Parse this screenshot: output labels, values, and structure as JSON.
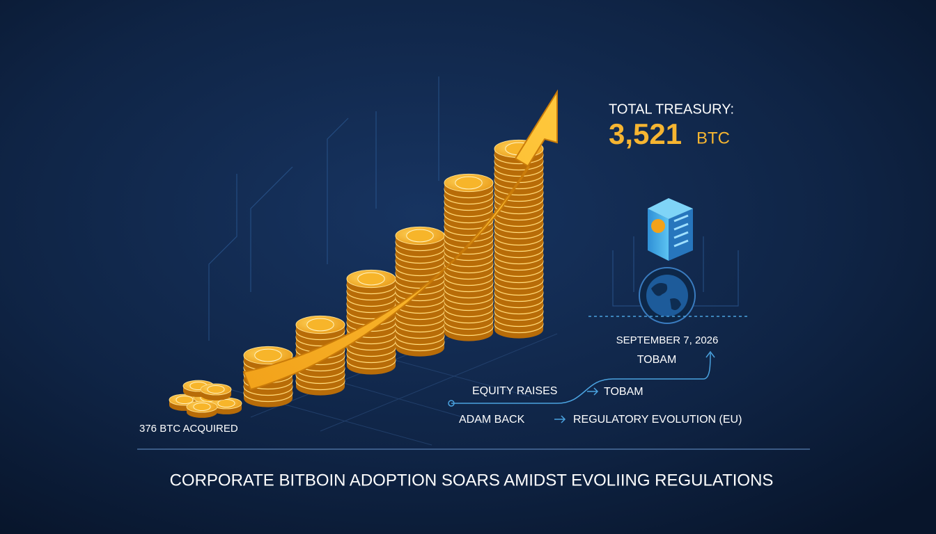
{
  "treasury": {
    "label": "TOTAL TREASURY:",
    "amount": "3,521",
    "unit": "BTC"
  },
  "acquired": "376 BTC ACQUIRED",
  "date": "SEPTEMBER 7, 2026",
  "timeline": [
    "TOBAM",
    "EQUITY RAISES",
    "TOBAM",
    "ADAM BACK",
    "REGULATORY EVOLUTION (EU)"
  ],
  "headline": "CORPORATE BITBOIN ADOPTION SOARS AMIDST EVOLIING REGULATIONS"
}
